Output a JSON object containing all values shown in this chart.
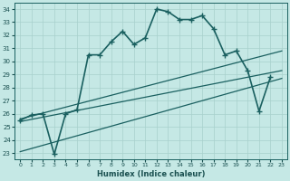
{
  "xlabel": "Humidex (Indice chaleur)",
  "background_color": "#c5e8e5",
  "grid_color": "#a8d0cc",
  "line_color": "#1a6060",
  "xlim": [
    -0.5,
    23.5
  ],
  "ylim": [
    22.5,
    34.5
  ],
  "xticks": [
    0,
    1,
    2,
    3,
    4,
    5,
    6,
    7,
    8,
    9,
    10,
    11,
    12,
    13,
    14,
    15,
    16,
    17,
    18,
    19,
    20,
    21,
    22,
    23
  ],
  "yticks": [
    23,
    24,
    25,
    26,
    27,
    28,
    29,
    30,
    31,
    32,
    33,
    34
  ],
  "main_series": {
    "x": [
      0,
      1,
      2,
      3,
      4,
      5,
      6,
      7,
      8,
      9,
      10,
      11,
      12,
      13,
      14,
      15,
      16,
      17,
      18,
      19,
      20,
      21,
      22
    ],
    "y": [
      25.5,
      25.9,
      26.0,
      22.9,
      26.0,
      26.3,
      30.5,
      30.5,
      31.5,
      32.3,
      31.3,
      31.8,
      34.0,
      33.8,
      33.2,
      33.2,
      33.5,
      32.5,
      30.5,
      30.8,
      29.3,
      26.2,
      28.8
    ]
  },
  "straight_lines": [
    {
      "x0": 0,
      "y0": 25.6,
      "x1": 23,
      "y1": 30.8
    },
    {
      "x0": 0,
      "y0": 25.4,
      "x1": 23,
      "y1": 29.3
    },
    {
      "x0": 0,
      "y0": 23.1,
      "x1": 23,
      "y1": 28.7
    }
  ]
}
